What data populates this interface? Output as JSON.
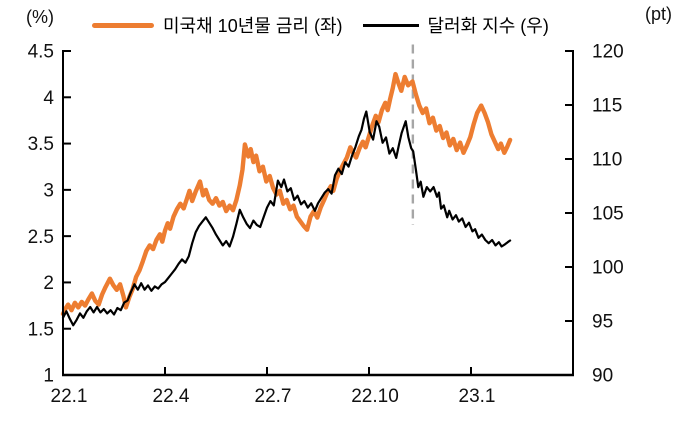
{
  "legend": [
    {
      "label": "미국채 10년물 금리 (좌)",
      "color": "#ED7D31"
    },
    {
      "label": "달러화 지수 (우)",
      "color": "#000000"
    }
  ],
  "chart_data": {
    "type": "line",
    "title": "",
    "grid": false,
    "legend_position": "top-center",
    "y_left": {
      "unit": "(%)",
      "min": 1,
      "max": 4.5,
      "ticks": [
        {
          "value": 4.5,
          "label": "4.5"
        },
        {
          "value": 4,
          "label": "4"
        },
        {
          "value": 3.5,
          "label": "3.5"
        },
        {
          "value": 3,
          "label": "3"
        },
        {
          "value": 2.5,
          "label": "2.5"
        },
        {
          "value": 2,
          "label": "2"
        },
        {
          "value": 1.5,
          "label": "1.5"
        },
        {
          "value": 1,
          "label": "1"
        }
      ]
    },
    "y_right": {
      "unit": "(pt)",
      "min": 90,
      "max": 120,
      "ticks": [
        {
          "value": 120,
          "label": "120"
        },
        {
          "value": 115,
          "label": "115"
        },
        {
          "value": 110,
          "label": "110"
        },
        {
          "value": 105,
          "label": "105"
        },
        {
          "value": 100,
          "label": "100"
        },
        {
          "value": 95,
          "label": "95"
        },
        {
          "value": 90,
          "label": "90"
        }
      ]
    },
    "x_axis": {
      "range_months": [
        0,
        15
      ],
      "ticks": [
        {
          "m": 0,
          "label": "22.1"
        },
        {
          "m": 3,
          "label": "22.4"
        },
        {
          "m": 6,
          "label": "22.7"
        },
        {
          "m": 9,
          "label": "22.10"
        },
        {
          "m": 12,
          "label": "23.1"
        }
      ]
    },
    "annotation_line": {
      "m": 10.29,
      "from_left_value": 4.57,
      "to_left_value": 2.62,
      "color": "#A6A6A6",
      "dash": "9 6",
      "width": 2.4
    },
    "series": [
      {
        "name": "미국채 10년물 금리 (좌)",
        "axis": "left",
        "color": "#ED7D31",
        "width": 4.4,
        "points": [
          [
            0,
            1.66
          ],
          [
            0.08,
            1.72
          ],
          [
            0.15,
            1.76
          ],
          [
            0.25,
            1.7
          ],
          [
            0.35,
            1.78
          ],
          [
            0.45,
            1.73
          ],
          [
            0.55,
            1.79
          ],
          [
            0.65,
            1.75
          ],
          [
            0.75,
            1.82
          ],
          [
            0.85,
            1.88
          ],
          [
            0.95,
            1.8
          ],
          [
            1.05,
            1.76
          ],
          [
            1.15,
            1.87
          ],
          [
            1.25,
            1.95
          ],
          [
            1.38,
            2.04
          ],
          [
            1.48,
            1.97
          ],
          [
            1.58,
            1.92
          ],
          [
            1.68,
            1.98
          ],
          [
            1.78,
            1.85
          ],
          [
            1.85,
            1.73
          ],
          [
            1.95,
            1.84
          ],
          [
            2.05,
            1.93
          ],
          [
            2.15,
            2.06
          ],
          [
            2.25,
            2.13
          ],
          [
            2.35,
            2.23
          ],
          [
            2.45,
            2.34
          ],
          [
            2.55,
            2.4
          ],
          [
            2.65,
            2.36
          ],
          [
            2.75,
            2.46
          ],
          [
            2.85,
            2.52
          ],
          [
            2.92,
            2.44
          ],
          [
            3,
            2.56
          ],
          [
            3.08,
            2.64
          ],
          [
            3.15,
            2.58
          ],
          [
            3.25,
            2.71
          ],
          [
            3.35,
            2.79
          ],
          [
            3.45,
            2.85
          ],
          [
            3.55,
            2.8
          ],
          [
            3.65,
            2.91
          ],
          [
            3.72,
            2.99
          ],
          [
            3.8,
            2.88
          ],
          [
            3.9,
            2.98
          ],
          [
            4.03,
            3.09
          ],
          [
            4.12,
            2.94
          ],
          [
            4.2,
            3.0
          ],
          [
            4.3,
            2.89
          ],
          [
            4.4,
            2.85
          ],
          [
            4.5,
            2.91
          ],
          [
            4.6,
            2.83
          ],
          [
            4.7,
            2.87
          ],
          [
            4.8,
            2.77
          ],
          [
            4.9,
            2.83
          ],
          [
            5,
            2.78
          ],
          [
            5.1,
            2.89
          ],
          [
            5.2,
            3.05
          ],
          [
            5.28,
            3.22
          ],
          [
            5.35,
            3.49
          ],
          [
            5.45,
            3.36
          ],
          [
            5.52,
            3.44
          ],
          [
            5.6,
            3.3
          ],
          [
            5.68,
            3.37
          ],
          [
            5.78,
            3.2
          ],
          [
            5.88,
            3.25
          ],
          [
            5.98,
            3.09
          ],
          [
            6.08,
            3.15
          ],
          [
            6.18,
            3.02
          ],
          [
            6.28,
            2.95
          ],
          [
            6.38,
            2.99
          ],
          [
            6.48,
            2.85
          ],
          [
            6.58,
            2.89
          ],
          [
            6.68,
            2.79
          ],
          [
            6.78,
            2.83
          ],
          [
            6.88,
            2.71
          ],
          [
            6.98,
            2.66
          ],
          [
            7.08,
            2.61
          ],
          [
            7.18,
            2.57
          ],
          [
            7.28,
            2.71
          ],
          [
            7.38,
            2.77
          ],
          [
            7.48,
            2.7
          ],
          [
            7.58,
            2.81
          ],
          [
            7.68,
            2.89
          ],
          [
            7.78,
            2.98
          ],
          [
            7.88,
            3.04
          ],
          [
            7.95,
            2.99
          ],
          [
            8.05,
            3.12
          ],
          [
            8.15,
            3.21
          ],
          [
            8.25,
            3.28
          ],
          [
            8.35,
            3.35
          ],
          [
            8.45,
            3.46
          ],
          [
            8.55,
            3.39
          ],
          [
            8.62,
            3.35
          ],
          [
            8.72,
            3.45
          ],
          [
            8.82,
            3.52
          ],
          [
            8.9,
            3.46
          ],
          [
            9,
            3.58
          ],
          [
            9.1,
            3.7
          ],
          [
            9.2,
            3.8
          ],
          [
            9.28,
            3.73
          ],
          [
            9.38,
            3.86
          ],
          [
            9.48,
            3.94
          ],
          [
            9.55,
            3.86
          ],
          [
            9.62,
            3.98
          ],
          [
            9.7,
            4.1
          ],
          [
            9.78,
            4.25
          ],
          [
            9.86,
            4.16
          ],
          [
            9.95,
            4.07
          ],
          [
            10.05,
            4.22
          ],
          [
            10.15,
            4.13
          ],
          [
            10.28,
            4.17
          ],
          [
            10.38,
            4.03
          ],
          [
            10.48,
            3.91
          ],
          [
            10.58,
            3.83
          ],
          [
            10.68,
            3.88
          ],
          [
            10.78,
            3.72
          ],
          [
            10.88,
            3.78
          ],
          [
            10.98,
            3.64
          ],
          [
            11.08,
            3.69
          ],
          [
            11.18,
            3.56
          ],
          [
            11.28,
            3.62
          ],
          [
            11.38,
            3.48
          ],
          [
            11.48,
            3.55
          ],
          [
            11.58,
            3.43
          ],
          [
            11.68,
            3.51
          ],
          [
            11.78,
            3.4
          ],
          [
            11.88,
            3.48
          ],
          [
            11.98,
            3.57
          ],
          [
            12.08,
            3.71
          ],
          [
            12.18,
            3.83
          ],
          [
            12.3,
            3.91
          ],
          [
            12.4,
            3.83
          ],
          [
            12.5,
            3.73
          ],
          [
            12.6,
            3.6
          ],
          [
            12.7,
            3.52
          ],
          [
            12.8,
            3.44
          ],
          [
            12.88,
            3.5
          ],
          [
            12.98,
            3.4
          ],
          [
            13.06,
            3.46
          ],
          [
            13.15,
            3.54
          ]
        ]
      },
      {
        "name": "달러화 지수 (우)",
        "axis": "right",
        "color": "#000000",
        "width": 2.2,
        "points": [
          [
            0,
            95.3
          ],
          [
            0.1,
            95.9
          ],
          [
            0.2,
            95.2
          ],
          [
            0.3,
            94.6
          ],
          [
            0.4,
            95.1
          ],
          [
            0.5,
            95.7
          ],
          [
            0.6,
            95.3
          ],
          [
            0.7,
            95.9
          ],
          [
            0.8,
            96.3
          ],
          [
            0.9,
            95.8
          ],
          [
            1,
            96.3
          ],
          [
            1.1,
            95.8
          ],
          [
            1.2,
            96.1
          ],
          [
            1.3,
            95.7
          ],
          [
            1.4,
            96.0
          ],
          [
            1.5,
            95.6
          ],
          [
            1.6,
            96.2
          ],
          [
            1.7,
            96.0
          ],
          [
            1.8,
            96.7
          ],
          [
            1.9,
            96.9
          ],
          [
            2,
            97.7
          ],
          [
            2.1,
            98.4
          ],
          [
            2.2,
            97.9
          ],
          [
            2.3,
            98.5
          ],
          [
            2.4,
            97.9
          ],
          [
            2.5,
            98.3
          ],
          [
            2.6,
            97.8
          ],
          [
            2.7,
            98.2
          ],
          [
            2.8,
            98.0
          ],
          [
            2.9,
            98.4
          ],
          [
            3,
            98.6
          ],
          [
            3.1,
            99.0
          ],
          [
            3.2,
            99.4
          ],
          [
            3.3,
            99.8
          ],
          [
            3.4,
            100.3
          ],
          [
            3.5,
            100.7
          ],
          [
            3.6,
            100.4
          ],
          [
            3.7,
            101.0
          ],
          [
            3.8,
            102.2
          ],
          [
            3.9,
            103.2
          ],
          [
            4,
            103.8
          ],
          [
            4.1,
            104.2
          ],
          [
            4.2,
            104.6
          ],
          [
            4.3,
            104.1
          ],
          [
            4.4,
            103.6
          ],
          [
            4.5,
            103.0
          ],
          [
            4.6,
            102.5
          ],
          [
            4.7,
            102.0
          ],
          [
            4.8,
            102.4
          ],
          [
            4.9,
            101.9
          ],
          [
            5,
            102.8
          ],
          [
            5.1,
            104.0
          ],
          [
            5.2,
            105.3
          ],
          [
            5.3,
            104.6
          ],
          [
            5.4,
            104.0
          ],
          [
            5.5,
            103.6
          ],
          [
            5.6,
            104.3
          ],
          [
            5.7,
            103.9
          ],
          [
            5.8,
            103.7
          ],
          [
            5.9,
            104.6
          ],
          [
            6,
            105.5
          ],
          [
            6.1,
            106.1
          ],
          [
            6.2,
            105.7
          ],
          [
            6.32,
            108.0
          ],
          [
            6.42,
            107.4
          ],
          [
            6.5,
            108.1
          ],
          [
            6.6,
            107.0
          ],
          [
            6.7,
            107.3
          ],
          [
            6.8,
            106.2
          ],
          [
            6.9,
            106.6
          ],
          [
            7,
            105.8
          ],
          [
            7.1,
            106.1
          ],
          [
            7.2,
            105.5
          ],
          [
            7.3,
            105.9
          ],
          [
            7.41,
            105.2
          ],
          [
            7.5,
            105.9
          ],
          [
            7.6,
            106.4
          ],
          [
            7.7,
            106.9
          ],
          [
            7.8,
            107.2
          ],
          [
            7.9,
            106.8
          ],
          [
            8,
            108.5
          ],
          [
            8.1,
            109.1
          ],
          [
            8.2,
            108.6
          ],
          [
            8.3,
            109.7
          ],
          [
            8.4,
            109.3
          ],
          [
            8.5,
            110.3
          ],
          [
            8.6,
            111.1
          ],
          [
            8.7,
            112.1
          ],
          [
            8.78,
            112.7
          ],
          [
            8.85,
            113.7
          ],
          [
            8.92,
            114.4
          ],
          [
            9.02,
            112.5
          ],
          [
            9.12,
            111.8
          ],
          [
            9.22,
            113.5
          ],
          [
            9.3,
            113.0
          ],
          [
            9.4,
            111.5
          ],
          [
            9.5,
            112.0
          ],
          [
            9.6,
            110.5
          ],
          [
            9.7,
            111.0
          ],
          [
            9.8,
            110.1
          ],
          [
            9.88,
            111.3
          ],
          [
            9.96,
            112.4
          ],
          [
            10.08,
            113.5
          ],
          [
            10.16,
            112.0
          ],
          [
            10.24,
            111.0
          ],
          [
            10.3,
            110.7
          ],
          [
            10.38,
            109.0
          ],
          [
            10.45,
            107.4
          ],
          [
            10.52,
            107.9
          ],
          [
            10.6,
            106.5
          ],
          [
            10.7,
            107.4
          ],
          [
            10.8,
            107.0
          ],
          [
            10.9,
            107.4
          ],
          [
            11,
            106.5
          ],
          [
            11.06,
            106.9
          ],
          [
            11.12,
            105.4
          ],
          [
            11.2,
            105.7
          ],
          [
            11.3,
            104.6
          ],
          [
            11.36,
            105.2
          ],
          [
            11.46,
            104.4
          ],
          [
            11.56,
            104.8
          ],
          [
            11.64,
            104.2
          ],
          [
            11.74,
            104.5
          ],
          [
            11.84,
            103.7
          ],
          [
            11.94,
            104.1
          ],
          [
            12.04,
            103.3
          ],
          [
            12.12,
            103.5
          ],
          [
            12.22,
            102.7
          ],
          [
            12.32,
            103.0
          ],
          [
            12.42,
            102.5
          ],
          [
            12.52,
            102.2
          ],
          [
            12.62,
            102.5
          ],
          [
            12.72,
            102.0
          ],
          [
            12.82,
            102.3
          ],
          [
            12.9,
            101.9
          ],
          [
            13,
            102.1
          ],
          [
            13.08,
            102.3
          ],
          [
            13.15,
            102.45
          ]
        ]
      }
    ]
  }
}
